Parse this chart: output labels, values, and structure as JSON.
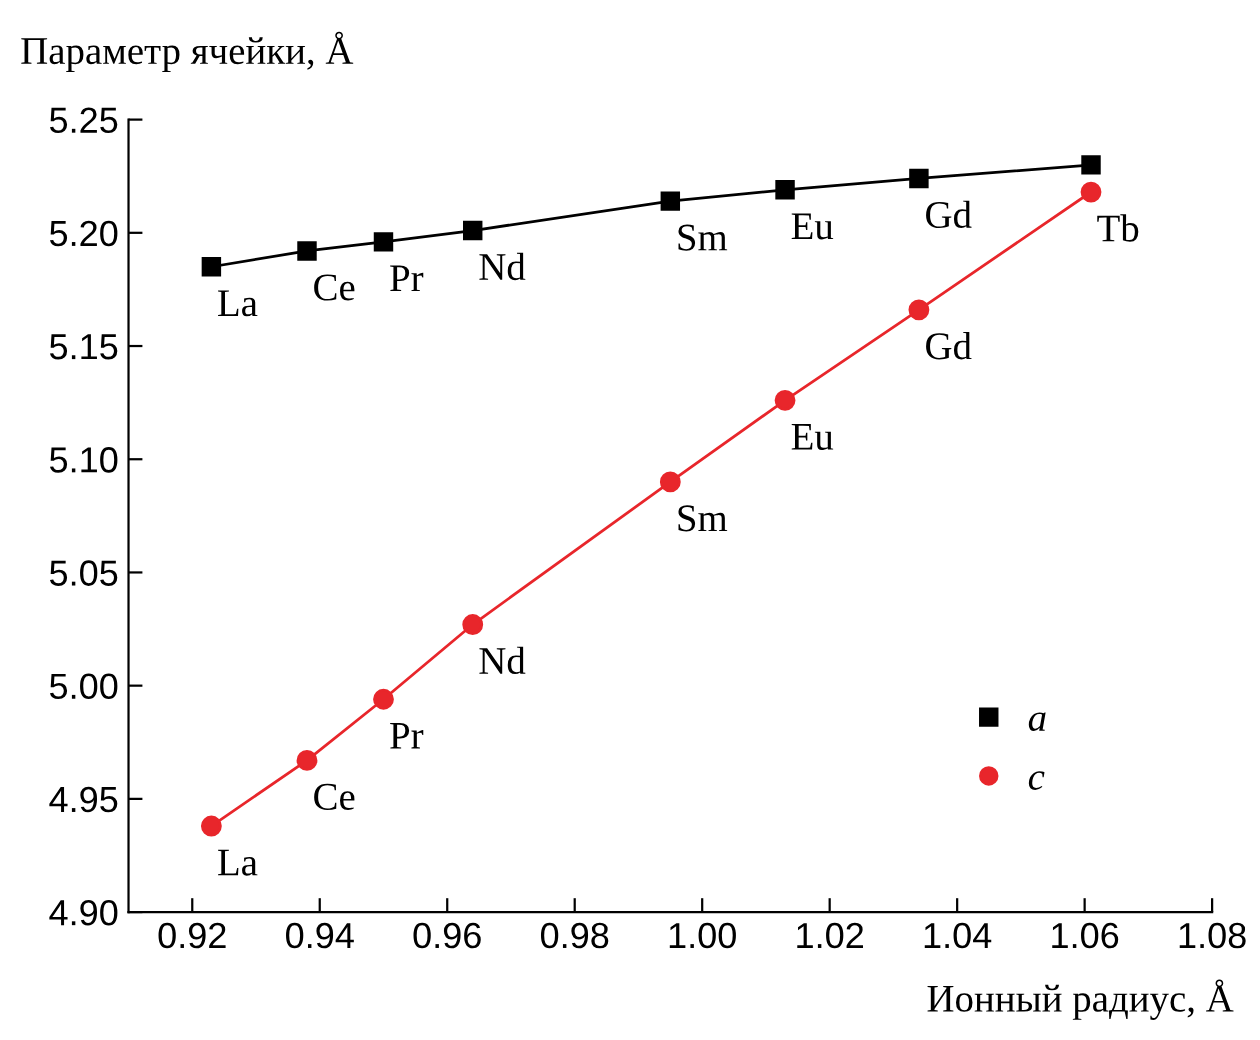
{
  "chart_data": {
    "type": "line",
    "xlabel": "Ионный радиус, Å",
    "ylabel": "Параметр ячейки, Å",
    "xlim": [
      0.91,
      1.08
    ],
    "xticks": [
      {
        "value": 0.92,
        "label": "0.92"
      },
      {
        "value": 0.94,
        "label": "0.94"
      },
      {
        "value": 0.96,
        "label": "0.96"
      },
      {
        "value": 0.98,
        "label": "0.98"
      },
      {
        "value": 1.0,
        "label": "1.00"
      },
      {
        "value": 1.02,
        "label": "1.02"
      },
      {
        "value": 1.04,
        "label": "1.04"
      },
      {
        "value": 1.06,
        "label": "1.06"
      },
      {
        "value": 1.08,
        "label": "1.08"
      }
    ],
    "ylim": [
      4.9,
      5.25
    ],
    "yticks": [
      {
        "value": 4.9,
        "label": "4.90"
      },
      {
        "value": 4.95,
        "label": "4.95"
      },
      {
        "value": 5.0,
        "label": "5.00"
      },
      {
        "value": 5.05,
        "label": "5.05"
      },
      {
        "value": 5.1,
        "label": "5.10"
      },
      {
        "value": 5.15,
        "label": "5.15"
      },
      {
        "value": 5.2,
        "label": "5.20"
      },
      {
        "value": 5.25,
        "label": "5.25"
      }
    ],
    "x": [
      0.923,
      0.938,
      0.95,
      0.964,
      0.995,
      1.013,
      1.034,
      1.061
    ],
    "series": [
      {
        "name": "a",
        "color": "#000000",
        "marker": "square",
        "values": [
          5.185,
          5.192,
          5.196,
          5.201,
          5.214,
          5.219,
          5.224,
          5.23
        ]
      },
      {
        "name": "c",
        "color": "#e8262b",
        "marker": "circle",
        "values": [
          4.938,
          4.967,
          4.994,
          5.027,
          5.09,
          5.126,
          5.166,
          5.218
        ]
      }
    ],
    "annotations": [
      {
        "text": "La",
        "x": 0.923,
        "y": 5.185
      },
      {
        "text": "Ce",
        "x": 0.938,
        "y": 5.192
      },
      {
        "text": "Pr",
        "x": 0.95,
        "y": 5.196
      },
      {
        "text": "Nd",
        "x": 0.964,
        "y": 5.201
      },
      {
        "text": "Sm",
        "x": 0.995,
        "y": 5.214
      },
      {
        "text": "Eu",
        "x": 1.013,
        "y": 5.219
      },
      {
        "text": "Gd",
        "x": 1.034,
        "y": 5.224
      },
      {
        "text": "La",
        "x": 0.923,
        "y": 4.938
      },
      {
        "text": "Ce",
        "x": 0.938,
        "y": 4.967
      },
      {
        "text": "Pr",
        "x": 0.95,
        "y": 4.994
      },
      {
        "text": "Nd",
        "x": 0.964,
        "y": 5.027
      },
      {
        "text": "Sm",
        "x": 0.995,
        "y": 5.09
      },
      {
        "text": "Eu",
        "x": 1.013,
        "y": 5.126
      },
      {
        "text": "Gd",
        "x": 1.034,
        "y": 5.166
      },
      {
        "text": "Tb",
        "x": 1.061,
        "y": 5.218
      }
    ],
    "legend": "bottom right",
    "grid": false,
    "line_style": "solid"
  }
}
